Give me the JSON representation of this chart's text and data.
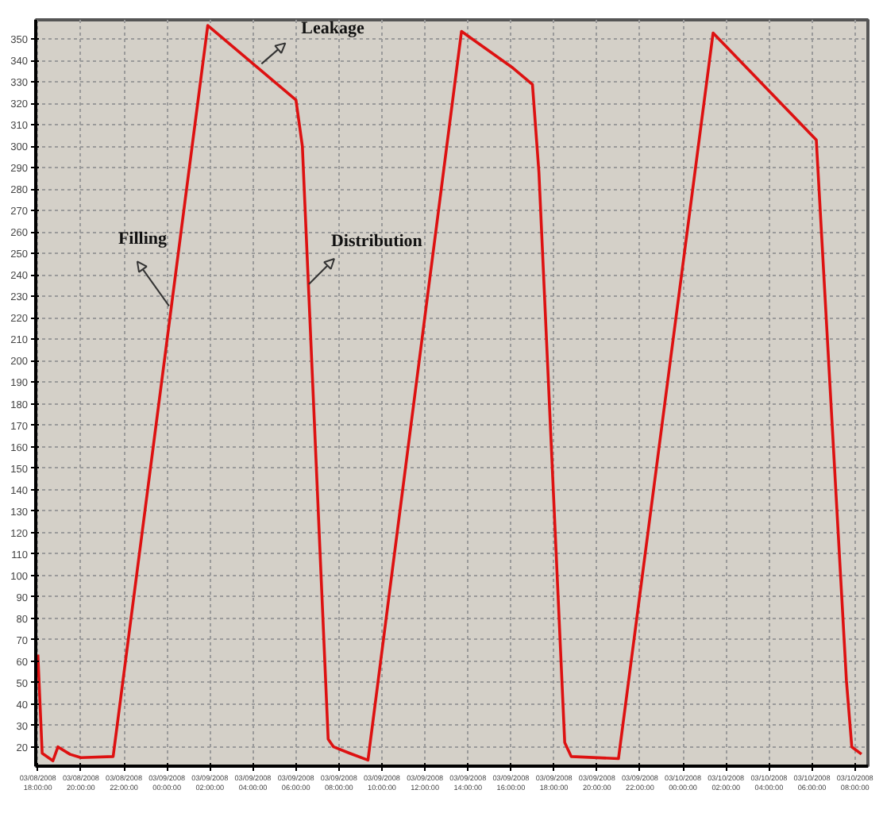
{
  "chart_data": {
    "type": "line",
    "x": [
      "2008-03-08T18:00",
      "2008-03-08T18:12",
      "2008-03-08T18:42",
      "2008-03-08T18:56",
      "2008-03-08T19:30",
      "2008-03-08T20:00",
      "2008-03-08T21:30",
      "2008-03-09T01:54",
      "2008-03-09T06:00",
      "2008-03-09T06:18",
      "2008-03-09T07:30",
      "2008-03-09T07:45",
      "2008-03-09T08:30",
      "2008-03-09T09:21",
      "2008-03-09T13:42",
      "2008-03-09T16:06",
      "2008-03-09T17:00",
      "2008-03-09T17:18",
      "2008-03-09T18:30",
      "2008-03-09T18:48",
      "2008-03-09T21:00",
      "2008-03-10T01:24",
      "2008-03-10T06:12",
      "2008-03-10T07:36",
      "2008-03-10T07:51",
      "2008-03-10T08:18"
    ],
    "series": [
      {
        "color": "#dd1111",
        "values": [
          63,
          17,
          13.5,
          20,
          16.5,
          15,
          15.5,
          356.4,
          321.7,
          300,
          23.6,
          20,
          17,
          13.8,
          353.6,
          336.5,
          328.9,
          288,
          22,
          15.5,
          14.5,
          352.9,
          303,
          50.9,
          20,
          16.6
        ]
      }
    ],
    "xlim": [
      "2008-03-08T17:54",
      "2008-03-10T08:36"
    ],
    "xticks": [
      {
        "value": "2008-03-08T18:00",
        "label": "03/08/2008\n18:00:00"
      },
      {
        "value": "2008-03-08T20:00",
        "label": "03/08/2008\n20:00:00"
      },
      {
        "value": "2008-03-08T22:00",
        "label": "03/08/2008\n22:00:00"
      },
      {
        "value": "2008-03-09T00:00",
        "label": "03/09/2008\n00:00:00"
      },
      {
        "value": "2008-03-09T02:00",
        "label": "03/09/2008\n02:00:00"
      },
      {
        "value": "2008-03-09T04:00",
        "label": "03/09/2008\n04:00:00"
      },
      {
        "value": "2008-03-09T06:00",
        "label": "03/09/2008\n06:00:00"
      },
      {
        "value": "2008-03-09T08:00",
        "label": "03/09/2008\n08:00:00"
      },
      {
        "value": "2008-03-09T10:00",
        "label": "03/09/2008\n10:00:00"
      },
      {
        "value": "2008-03-09T12:00",
        "label": "03/09/2008\n12:00:00"
      },
      {
        "value": "2008-03-09T14:00",
        "label": "03/09/2008\n14:00:00"
      },
      {
        "value": "2008-03-09T16:00",
        "label": "03/09/2008\n16:00:00"
      },
      {
        "value": "2008-03-09T18:00",
        "label": "03/09/2008\n18:00:00"
      },
      {
        "value": "2008-03-09T20:00",
        "label": "03/09/2008\n20:00:00"
      },
      {
        "value": "2008-03-09T22:00",
        "label": "03/09/2008\n22:00:00"
      },
      {
        "value": "2008-03-10T00:00",
        "label": "03/10/2008\n00:00:00"
      },
      {
        "value": "2008-03-10T02:00",
        "label": "03/10/2008\n02:00:00"
      },
      {
        "value": "2008-03-10T04:00",
        "label": "03/10/2008\n04:00:00"
      },
      {
        "value": "2008-03-10T06:00",
        "label": "03/10/2008\n06:00:00"
      },
      {
        "value": "2008-03-10T08:00",
        "label": "03/10/2008\n08:00:00"
      }
    ],
    "ylim": [
      11,
      359
    ],
    "yticks": [
      20,
      30,
      40,
      50,
      60,
      70,
      80,
      90,
      100,
      110,
      120,
      130,
      140,
      150,
      160,
      170,
      180,
      190,
      200,
      210,
      220,
      230,
      240,
      250,
      260,
      270,
      280,
      290,
      300,
      310,
      320,
      330,
      340,
      350
    ],
    "grid": true,
    "line_style": "solid",
    "annotations": [
      {
        "text": "Filling",
        "x": "2008-03-09T00:06",
        "y": 225.6
      },
      {
        "text": "Leakage",
        "x": "2008-03-09T04:24",
        "y": 338.5
      },
      {
        "text": "Distribution",
        "x": "2008-03-09T06:36",
        "y": 235.7
      }
    ]
  }
}
